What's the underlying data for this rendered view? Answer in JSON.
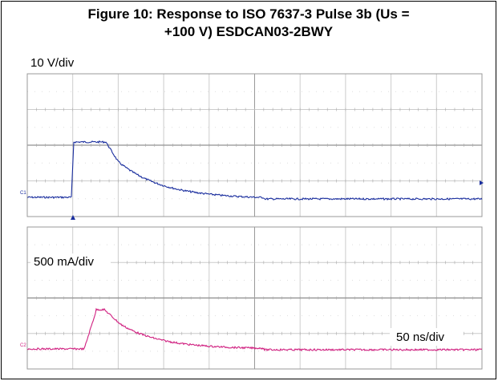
{
  "figure": {
    "title_lines": [
      "Figure 10: Response to ISO 7637-3 Pulse 3b (Us =",
      "+100 V) ESDCAN03-2BWY"
    ],
    "top_scale": "10 V/div",
    "bottom_scale": "500 mA/div",
    "time_scale": "50 ns/div",
    "channel_1": "C1",
    "channel_2": "C2"
  }
}
